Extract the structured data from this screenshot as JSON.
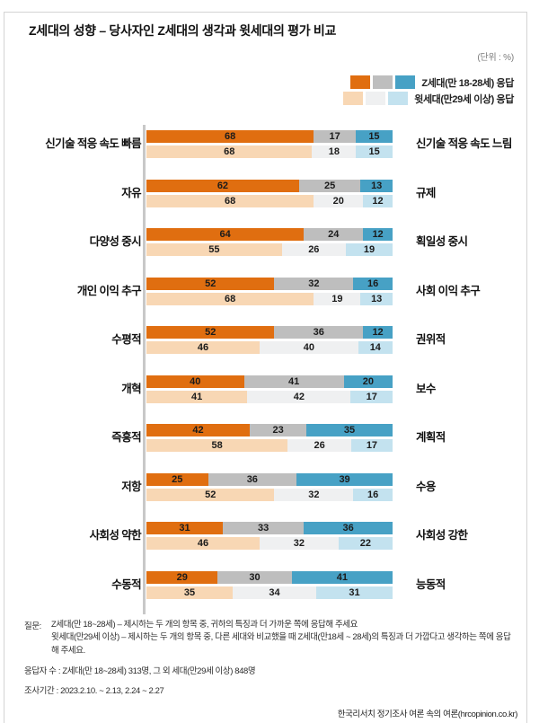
{
  "title": "Z세대의 성향 – 당사자인 Z세대의 생각과 윗세대의 평가 비교",
  "unit_label": "(단위 : %)",
  "legend": {
    "z_label": "Z세대(만 18-28세) 응답",
    "elder_label": "윗세대(만29세 이상) 응답"
  },
  "colors": {
    "z": [
      "#e06e10",
      "#bebebe",
      "#47a1c5"
    ],
    "elder": [
      "#f8d7b4",
      "#eff0f1",
      "#c3e2ef"
    ],
    "axis": "#c8c8c8"
  },
  "chart_data": {
    "type": "bar",
    "variant": "paired-horizontal-stacked",
    "unit": "%",
    "series": [
      {
        "name": "Z세대(만 18-28세) 응답",
        "palette": "z"
      },
      {
        "name": "윗세대(만29세 이상) 응답",
        "palette": "elder"
      }
    ],
    "segment_meaning": [
      "왼쪽 항목 응답",
      "중립/유보",
      "오른쪽 항목 응답"
    ],
    "xlim": [
      0,
      100
    ],
    "rows": [
      {
        "left_label": "신기술 적응 속도 빠름",
        "right_label": "신기술 적응 속도 느림",
        "z_values": [
          68,
          17,
          15
        ],
        "elder_values": [
          68,
          18,
          15
        ]
      },
      {
        "left_label": "자유",
        "right_label": "규제",
        "z_values": [
          62,
          25,
          13
        ],
        "elder_values": [
          68,
          20,
          12
        ]
      },
      {
        "left_label": "다양성 중시",
        "right_label": "획일성 중시",
        "z_values": [
          64,
          24,
          12
        ],
        "elder_values": [
          55,
          26,
          19
        ]
      },
      {
        "left_label": "개인 이익 추구",
        "right_label": "사회 이익 추구",
        "z_values": [
          52,
          32,
          16
        ],
        "elder_values": [
          68,
          19,
          13
        ]
      },
      {
        "left_label": "수평적",
        "right_label": "권위적",
        "z_values": [
          52,
          36,
          12
        ],
        "elder_values": [
          46,
          40,
          14
        ]
      },
      {
        "left_label": "개혁",
        "right_label": "보수",
        "z_values": [
          40,
          41,
          20
        ],
        "elder_values": [
          41,
          42,
          17
        ]
      },
      {
        "left_label": "즉흥적",
        "right_label": "계획적",
        "z_values": [
          42,
          23,
          35
        ],
        "elder_values": [
          58,
          26,
          17
        ]
      },
      {
        "left_label": "저항",
        "right_label": "수용",
        "z_values": [
          25,
          36,
          39
        ],
        "elder_values": [
          52,
          32,
          16
        ]
      },
      {
        "left_label": "사회성 약한",
        "right_label": "사회성 강한",
        "z_values": [
          31,
          33,
          36
        ],
        "elder_values": [
          46,
          32,
          22
        ]
      },
      {
        "left_label": "수동적",
        "right_label": "능동적",
        "z_values": [
          29,
          30,
          41
        ],
        "elder_values": [
          35,
          34,
          31
        ]
      }
    ]
  },
  "footer": {
    "question_label": "질문:",
    "question_lines": [
      "Z세대(만 18~28세) – 제시하는 두 개의 항목 중, 귀하의 특징과 더 가까운 쪽에 응답해 주세요",
      "윗세대(만29세 이상) – 제시하는 두 개의 항목 중, 다른 세대와 비교했을 때 Z세대(만18세 ~ 28세)의 특징과 더 가깝다고 생각하는 쪽에 응답해 주세요."
    ],
    "respondents": "응답자 수 : Z세대(만 18~28세) 313명, 그 외 세대(만29세 이상) 848명",
    "period": "조사기간 : 2023.2.10. ~ 2.13, 2.24 ~ 2.27",
    "source": "한국리서치 정기조사 여론 속의 여론(hrcopinion.co.kr)"
  }
}
